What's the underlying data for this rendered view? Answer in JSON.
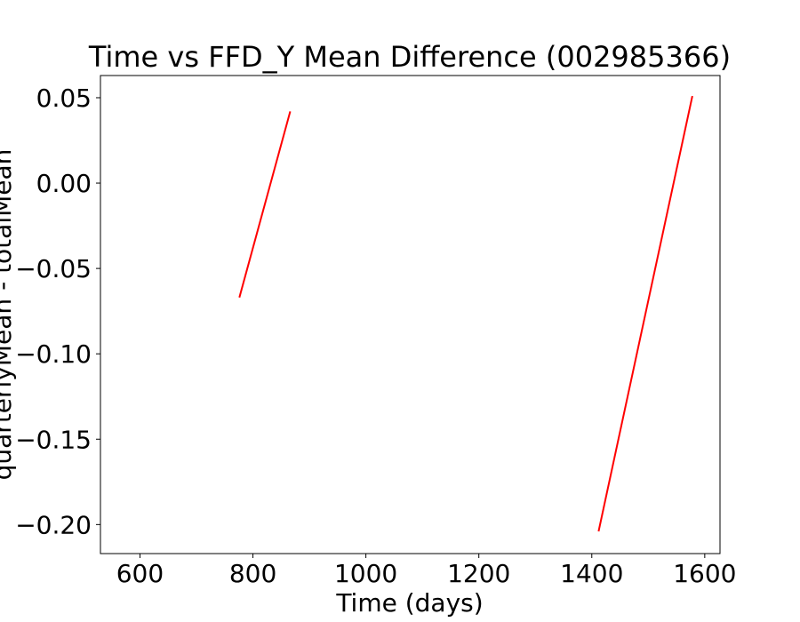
{
  "chart_data": {
    "type": "line",
    "title": "Time vs FFD_Y Mean Difference (002985366)",
    "xlabel": "Time (days)",
    "ylabel": "quarterlyMean - totalMean",
    "xlim": [
      530,
      1627
    ],
    "ylim": [
      -0.217,
      0.063
    ],
    "xticks": [
      600,
      800,
      1000,
      1200,
      1400,
      1600
    ],
    "xtick_labels": [
      "600",
      "800",
      "1000",
      "1200",
      "1400",
      "1600"
    ],
    "yticks": [
      0.05,
      0.0,
      -0.05,
      -0.1,
      -0.15,
      -0.2
    ],
    "ytick_labels": [
      "0.05",
      "0.00",
      "−0.05",
      "−0.10",
      "−0.15",
      "−0.20"
    ],
    "grid": false,
    "series": [
      {
        "color": "#ff0000",
        "segments": [
          {
            "x": [
              776,
              866
            ],
            "y": [
              -0.067,
              0.042
            ]
          },
          {
            "x": [
              1412,
              1578
            ],
            "y": [
              -0.204,
              0.051
            ]
          }
        ]
      }
    ]
  }
}
